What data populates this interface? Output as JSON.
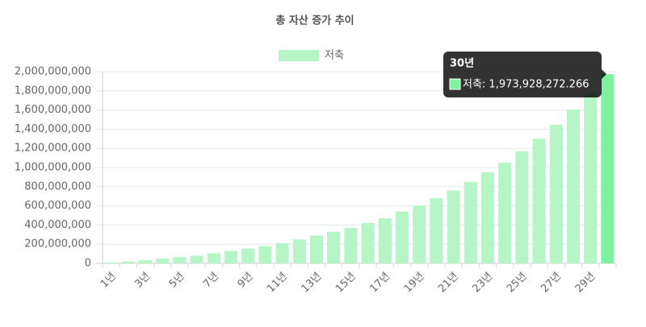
{
  "chart_data": {
    "type": "bar",
    "title": "총 자산 증가 추이",
    "categories": [
      "1년",
      null,
      "3년",
      null,
      "5년",
      null,
      "7년",
      null,
      "9년",
      null,
      "11년",
      null,
      "13년",
      null,
      "15년",
      null,
      "17년",
      null,
      "19년",
      null,
      "21년",
      null,
      "23년",
      null,
      "25년",
      null,
      "27년",
      null,
      "29년",
      null
    ],
    "series": [
      {
        "name": "저축",
        "color": "#b5f5c6",
        "active_color": "#7ef1a0",
        "values": [
          10000000,
          20000000,
          35000000,
          50000000,
          65000000,
          80000000,
          105000000,
          130000000,
          155000000,
          180000000,
          210000000,
          250000000,
          290000000,
          330000000,
          370000000,
          420000000,
          470000000,
          540000000,
          600000000,
          680000000,
          760000000,
          850000000,
          950000000,
          1050000000,
          1170000000,
          1300000000,
          1445000000,
          1605000000,
          1780000000,
          1973928272.266
        ]
      }
    ],
    "ylim": [
      0,
      2000000000
    ],
    "yticks": [
      0,
      {
        "value": 200000000,
        "label": "200,000,000"
      },
      {
        "value": 400000000,
        "label": "400,000,000"
      },
      {
        "value": 600000000,
        "label": "600,000,000"
      },
      {
        "value": 800000000,
        "label": "800,000,000"
      },
      {
        "value": 1000000000,
        "label": "1,000,000,000"
      },
      {
        "value": 1200000000,
        "label": "1,200,000,000"
      },
      {
        "value": 1400000000,
        "label": "1,400,000,000"
      },
      {
        "value": 1600000000,
        "label": "1,600,000,000"
      },
      {
        "value": 1800000000,
        "label": "1,800,000,000"
      },
      {
        "value": 2000000000,
        "label": "2,000,000,000"
      }
    ],
    "grid": true,
    "legend": "top",
    "tooltip": {
      "title": "30년",
      "text": "저축: 1,973,928,272.266"
    }
  }
}
